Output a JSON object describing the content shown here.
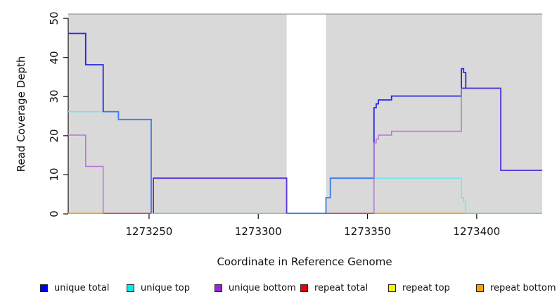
{
  "chart_data": {
    "type": "line",
    "title": "",
    "xlabel": "Coordinate in Reference Genome",
    "ylabel": "Read Coverage Depth",
    "xlim": [
      1273213,
      1273430
    ],
    "ylim": [
      0,
      51
    ],
    "x_ticks": [
      1273250,
      1273300,
      1273350,
      1273400
    ],
    "y_ticks": [
      0,
      10,
      20,
      30,
      40,
      50
    ],
    "plot_background": "#d9d9d9",
    "gap_region": {
      "x0": 1273313,
      "x1": 1273331,
      "color": "#ffffff"
    },
    "top_border_color": "#999999",
    "legend": [
      {
        "label": "unique total",
        "color": "#0000f0"
      },
      {
        "label": "unique top",
        "color": "#00eded"
      },
      {
        "label": "unique bottom",
        "color": "#a21fe8"
      },
      {
        "label": "repeat total",
        "color": "#ee0000"
      },
      {
        "label": "repeat top",
        "color": "#f5f500"
      },
      {
        "label": "repeat bottom",
        "color": "#ffa200"
      }
    ],
    "series": [
      {
        "name": "baseline-green-mid",
        "color": "#80ca80",
        "width": 1.4,
        "points": [
          [
            1273252,
            0
          ],
          [
            1273313,
            0
          ]
        ]
      },
      {
        "name": "baseline-green-right",
        "color": "#80ca80",
        "width": 1.4,
        "points": [
          [
            1273395,
            0
          ],
          [
            1273430,
            0
          ]
        ]
      },
      {
        "name": "repeat-bottom-left",
        "color": "#ff9f00",
        "width": 1.6,
        "points": [
          [
            1273213,
            0
          ],
          [
            1273229,
            0
          ]
        ]
      },
      {
        "name": "repeat-bottom-right",
        "color": "#ff9f00",
        "width": 1.6,
        "points": [
          [
            1273353,
            0
          ],
          [
            1273395,
            0
          ]
        ]
      },
      {
        "name": "repeat-total-left",
        "color": "#cc3355",
        "width": 1.4,
        "points": [
          [
            1273229,
            0
          ],
          [
            1273251,
            0
          ]
        ]
      },
      {
        "name": "repeat-total-mid",
        "color": "#cc3355",
        "width": 1.4,
        "points": [
          [
            1273331,
            0
          ],
          [
            1273353,
            0
          ]
        ]
      },
      {
        "name": "unique-top-left",
        "color": "#6ee6ef",
        "width": 1.5,
        "points": [
          [
            1273213,
            26
          ],
          [
            1273229,
            26
          ]
        ]
      },
      {
        "name": "unique-top-right",
        "color": "#6ee6ef",
        "width": 1.5,
        "points": [
          [
            1273353,
            9
          ],
          [
            1273393,
            9
          ],
          [
            1273393,
            4
          ],
          [
            1273394,
            4
          ],
          [
            1273394,
            3
          ],
          [
            1273395,
            3
          ],
          [
            1273395,
            0
          ]
        ]
      },
      {
        "name": "unique-bottom-left",
        "color": "#bb72da",
        "width": 1.5,
        "points": [
          [
            1273213,
            20
          ],
          [
            1273221,
            20
          ],
          [
            1273221,
            12
          ],
          [
            1273229,
            12
          ],
          [
            1273229,
            0
          ]
        ]
      },
      {
        "name": "unique-merged-mid",
        "color": "#5b33d9",
        "width": 1.8,
        "points": [
          [
            1273252,
            0
          ],
          [
            1273252,
            9
          ],
          [
            1273313,
            9
          ],
          [
            1273313,
            0
          ]
        ]
      },
      {
        "name": "unique-total-gap",
        "color": "#3d7bf0",
        "width": 1.8,
        "points": [
          [
            1273313,
            0
          ],
          [
            1273331,
            0
          ],
          [
            1273331,
            4
          ],
          [
            1273333,
            4
          ],
          [
            1273333,
            9
          ],
          [
            1273353,
            9
          ]
        ]
      },
      {
        "name": "unique-total-left-light",
        "color": "#3d7bf0",
        "width": 1.8,
        "points": [
          [
            1273229,
            26
          ],
          [
            1273236,
            26
          ],
          [
            1273236,
            24
          ],
          [
            1273251,
            24
          ],
          [
            1273251,
            0
          ]
        ]
      },
      {
        "name": "unique-total-left",
        "color": "#2727e0",
        "width": 1.8,
        "points": [
          [
            1273213,
            46
          ],
          [
            1273221,
            46
          ],
          [
            1273221,
            38
          ],
          [
            1273229,
            38
          ],
          [
            1273229,
            26
          ]
        ]
      },
      {
        "name": "unique-total-right",
        "color": "#2727e0",
        "width": 1.8,
        "points": [
          [
            1273353,
            9
          ],
          [
            1273353,
            27
          ],
          [
            1273354,
            27
          ],
          [
            1273354,
            28
          ],
          [
            1273355,
            28
          ],
          [
            1273355,
            29
          ],
          [
            1273361,
            29
          ],
          [
            1273361,
            30
          ],
          [
            1273393,
            30
          ],
          [
            1273393,
            37
          ],
          [
            1273394,
            37
          ],
          [
            1273394,
            36
          ],
          [
            1273395,
            36
          ],
          [
            1273395,
            32
          ]
        ]
      },
      {
        "name": "unique-merged-right",
        "color": "#5b33d9",
        "width": 1.8,
        "points": [
          [
            1273393,
            32
          ],
          [
            1273411,
            32
          ],
          [
            1273411,
            11
          ],
          [
            1273430,
            11
          ]
        ]
      },
      {
        "name": "unique-bottom-right",
        "color": "#bb72da",
        "width": 1.5,
        "points": [
          [
            1273353,
            0
          ],
          [
            1273353,
            18
          ],
          [
            1273354,
            18
          ],
          [
            1273354,
            19
          ],
          [
            1273355,
            19
          ],
          [
            1273355,
            20
          ],
          [
            1273361,
            20
          ],
          [
            1273361,
            21
          ],
          [
            1273393,
            21
          ],
          [
            1273393,
            32
          ]
        ]
      }
    ]
  }
}
